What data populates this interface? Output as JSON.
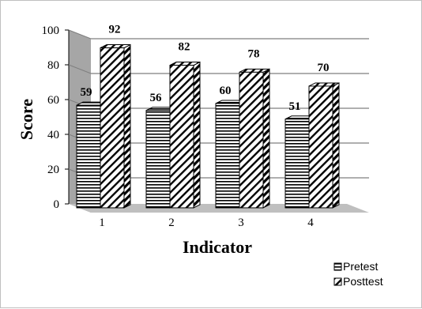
{
  "chart_data": {
    "type": "bar",
    "categories": [
      "1",
      "2",
      "3",
      "4"
    ],
    "series": [
      {
        "name": "Pretest",
        "values": [
          59,
          56,
          60,
          51
        ],
        "pattern": "horizontal-stripes"
      },
      {
        "name": "Posttest",
        "values": [
          92,
          82,
          78,
          70
        ],
        "pattern": "diagonal-stripes"
      }
    ],
    "title": "",
    "xlabel": "Indicator",
    "ylabel": "Score",
    "ylim": [
      0,
      100
    ],
    "yticks": [
      0,
      20,
      40,
      60,
      80,
      100
    ],
    "grid": true,
    "legend_position": "bottom-right",
    "colors": {
      "wall": "#a6a6a6",
      "floor": "#bfbfbf",
      "grid": "#7f7f7f",
      "bar_fill": "#ffffff",
      "stroke": "#000000"
    }
  }
}
